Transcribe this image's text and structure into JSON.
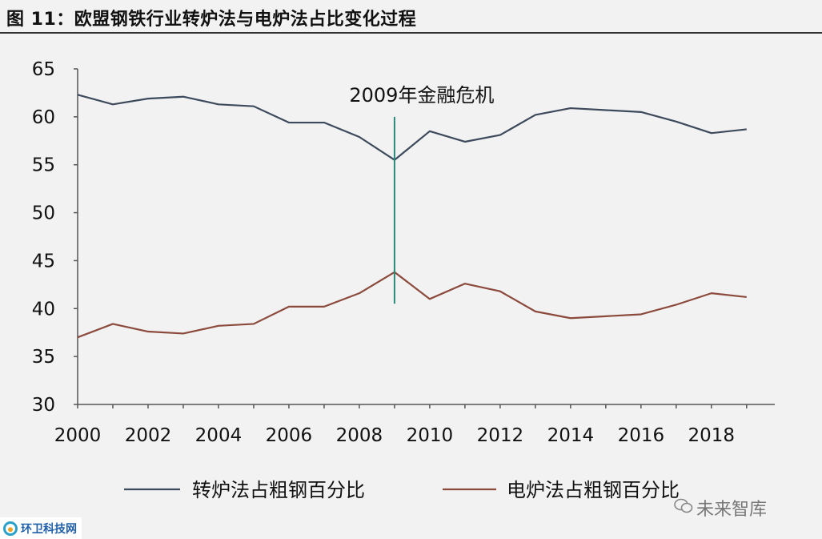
{
  "figure_title": "图 11：欧盟钢铁行业转炉法与电炉法占比变化过程",
  "watermark": "未来智库",
  "logo_text": "环卫科技网",
  "chart_data": {
    "type": "line",
    "x": [
      2000,
      2001,
      2002,
      2003,
      2004,
      2005,
      2006,
      2007,
      2008,
      2009,
      2010,
      2011,
      2012,
      2013,
      2014,
      2015,
      2016,
      2017,
      2018,
      2019
    ],
    "x_ticks": [
      2000,
      2002,
      2004,
      2006,
      2008,
      2010,
      2012,
      2014,
      2016,
      2018
    ],
    "y_ticks": [
      30,
      35,
      40,
      45,
      50,
      55,
      60,
      65
    ],
    "ylim": [
      30,
      65
    ],
    "xlim": [
      2000,
      2019.8
    ],
    "series": [
      {
        "name": "转炉法占粗钢百分比",
        "color": "#3d4a5c",
        "values": [
          62.3,
          61.3,
          61.9,
          62.1,
          61.3,
          61.1,
          59.4,
          59.4,
          57.9,
          55.5,
          58.5,
          57.4,
          58.1,
          60.2,
          60.9,
          60.7,
          60.5,
          59.5,
          58.3,
          58.7
        ]
      },
      {
        "name": "电炉法占粗钢百分比",
        "color": "#8b4a3c",
        "values": [
          37.0,
          38.4,
          37.6,
          37.4,
          38.2,
          38.4,
          40.2,
          40.2,
          41.6,
          43.8,
          41.0,
          42.6,
          41.8,
          39.7,
          39.0,
          39.2,
          39.4,
          40.4,
          41.6,
          41.2
        ]
      }
    ],
    "annotation": {
      "text": "2009年金融危机",
      "x": 2009,
      "y_range": [
        40.5,
        60.0
      ],
      "color": "#2a8a7a"
    },
    "legend_position": "bottom",
    "grid": false
  }
}
